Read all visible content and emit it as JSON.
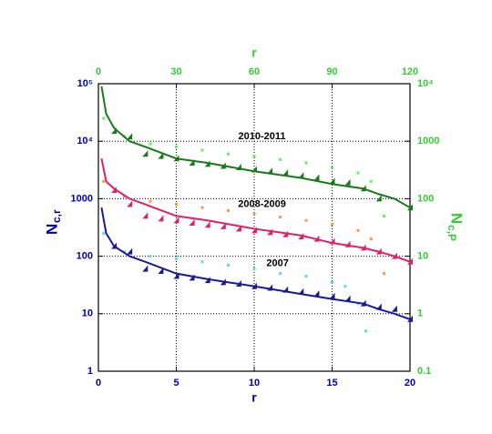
{
  "chart_data": {
    "type": "scatter",
    "x_label": "r",
    "x2_label": "r",
    "y_label": "N",
    "y_label_sub": "c,r",
    "y2_label": "N",
    "y2_label_sub": "c,P",
    "xlim": [
      0,
      20
    ],
    "xticks": [
      0,
      5,
      10,
      15,
      20
    ],
    "x2lim": [
      0,
      120
    ],
    "x2ticks": [
      0,
      30,
      60,
      90,
      120
    ],
    "ylim": [
      1,
      100000
    ],
    "yticks": [
      1,
      10,
      100,
      1000,
      {
        "value": 10000,
        "label": "10⁴"
      },
      {
        "value": 100000,
        "label": "10⁵"
      }
    ],
    "y2lim": [
      0.1,
      10000
    ],
    "y2ticks": [
      0.1,
      1,
      10,
      100,
      1000,
      {
        "value": 10000,
        "label": "10⁴"
      }
    ],
    "log_y": true,
    "grid": true,
    "axis_color": "#0000aa",
    "axis2_color": "#33cc33",
    "annotations": [
      {
        "text": "2010-2011",
        "x": 10.5,
        "y": 12000
      },
      {
        "text": "2008-2009",
        "x": 10.5,
        "y": 800
      },
      {
        "text": "2007",
        "x": 11.5,
        "y": 75
      }
    ],
    "series": [
      {
        "kind": "points",
        "axis": "y2",
        "color": "#66ee66",
        "x": [
          2,
          10,
          20,
          30,
          40,
          50,
          60,
          70,
          80,
          90,
          100,
          105,
          110
        ],
        "values": [
          2500,
          1200,
          900,
          800,
          700,
          600,
          550,
          480,
          420,
          350,
          280,
          200,
          50
        ]
      },
      {
        "kind": "points",
        "axis": "y2",
        "color": "#e8a040",
        "x": [
          2,
          10,
          20,
          30,
          40,
          50,
          60,
          70,
          80,
          90,
          100,
          105,
          110
        ],
        "values": [
          200,
          110,
          90,
          80,
          70,
          62,
          55,
          48,
          42,
          36,
          28,
          20,
          5
        ]
      },
      {
        "kind": "points",
        "axis": "y2",
        "color": "#55ddee",
        "x": [
          2,
          10,
          20,
          30,
          40,
          50,
          60,
          70,
          80,
          90,
          95,
          100,
          103
        ],
        "values": [
          25,
          12,
          10,
          9,
          8,
          7,
          6,
          5,
          4.5,
          3.5,
          3,
          1.5,
          0.5
        ]
      },
      {
        "kind": "line",
        "color": "#1a7a1a",
        "x": [
          0.2,
          0.5,
          1,
          2,
          3,
          5,
          7,
          10,
          13,
          15,
          17,
          18,
          19,
          20
        ],
        "values": [
          90000,
          30000,
          17000,
          10000,
          8000,
          5000,
          4200,
          3000,
          2300,
          1800,
          1500,
          1200,
          1000,
          700
        ]
      },
      {
        "kind": "line",
        "color": "#e0206a",
        "x": [
          0.2,
          0.5,
          1,
          2,
          3,
          5,
          7,
          10,
          13,
          15,
          17,
          18,
          19,
          20
        ],
        "values": [
          5000,
          2000,
          1500,
          1000,
          800,
          500,
          420,
          300,
          230,
          170,
          140,
          120,
          100,
          80
        ]
      },
      {
        "kind": "line",
        "color": "#1a1a99",
        "x": [
          0.2,
          0.5,
          1,
          2,
          3,
          5,
          7,
          10,
          13,
          15,
          17,
          18,
          19,
          20
        ],
        "values": [
          700,
          250,
          150,
          100,
          80,
          50,
          40,
          30,
          22,
          18,
          15,
          12,
          10,
          8
        ]
      },
      {
        "kind": "triangles",
        "color": "#1a7a1a",
        "x": [
          1,
          2,
          3,
          4,
          5,
          6,
          7,
          8,
          9,
          10,
          11,
          12,
          13,
          14,
          15,
          16,
          17,
          18,
          20
        ],
        "values": [
          15000,
          12000,
          6000,
          5500,
          5000,
          4200,
          4000,
          3700,
          3500,
          3200,
          3000,
          2800,
          2500,
          2300,
          2000,
          1900,
          1500,
          1000,
          700
        ]
      },
      {
        "kind": "triangles",
        "color": "#e0206a",
        "x": [
          1,
          2,
          3,
          4,
          5,
          6,
          7,
          8,
          9,
          10,
          11,
          12,
          13,
          14,
          15,
          16,
          17,
          18,
          19,
          20
        ],
        "values": [
          1400,
          800,
          500,
          450,
          420,
          380,
          350,
          330,
          300,
          280,
          260,
          240,
          220,
          200,
          180,
          160,
          140,
          120,
          100,
          80
        ]
      },
      {
        "kind": "triangles",
        "color": "#1a1a99",
        "x": [
          1,
          2,
          3,
          4,
          5,
          6,
          7,
          8,
          9,
          10,
          11,
          12,
          13,
          14,
          15,
          16,
          17,
          18,
          19,
          20
        ],
        "values": [
          150,
          120,
          60,
          55,
          45,
          42,
          38,
          35,
          33,
          30,
          28,
          26,
          24,
          22,
          20,
          18,
          15,
          13,
          12,
          8
        ]
      }
    ]
  }
}
